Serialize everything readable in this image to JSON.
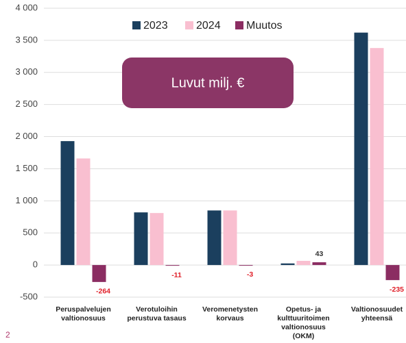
{
  "chart_data": {
    "type": "bar",
    "annotation": "Luvut milj. €",
    "page_number": "2",
    "categories": [
      [
        "Peruspalvelujen",
        "valtionosuus"
      ],
      [
        "Verotuloihin",
        "perustuva tasaus"
      ],
      [
        "Veromenetysten",
        "korvaus"
      ],
      [
        "Opetus- ja",
        "kulttuuritoimen",
        "valtionosuus",
        "(OKM)"
      ],
      [
        "Valtionosuudet",
        "yhteensä"
      ]
    ],
    "series": [
      {
        "name": "2023",
        "color": "#1b3f5e",
        "values": [
          1930,
          820,
          850,
          25,
          3620
        ]
      },
      {
        "name": "2024",
        "color": "#f9bfd0",
        "values": [
          1660,
          810,
          850,
          65,
          3380
        ]
      },
      {
        "name": "Muutos",
        "color": "#8b2d62",
        "values": [
          -264,
          -11,
          -3,
          43,
          -235
        ],
        "show_labels": true
      }
    ],
    "ylim": [
      -500,
      4000
    ],
    "yticks": [
      -500,
      0,
      500,
      {
        "value": 1000,
        "label": "1 000"
      },
      {
        "value": 1500,
        "label": "1 500"
      },
      {
        "value": 2000,
        "label": "2 000"
      },
      {
        "value": 2500,
        "label": "2 500"
      },
      {
        "value": 3000,
        "label": "3 000"
      },
      {
        "value": 3500,
        "label": "3 500"
      },
      {
        "value": 4000,
        "label": "4 000"
      }
    ],
    "grid": true
  }
}
